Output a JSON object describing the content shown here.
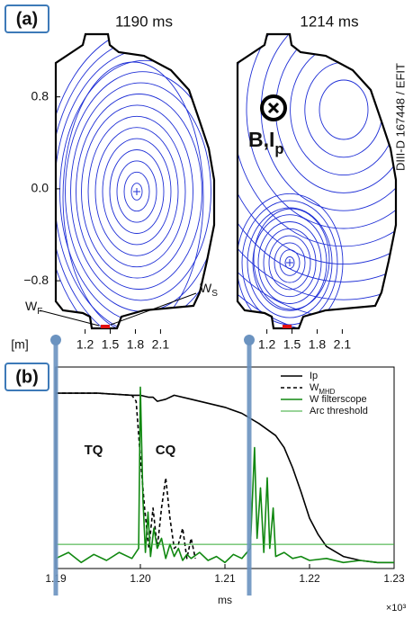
{
  "chart_data": [
    {
      "type": "contour",
      "panel": "(a)",
      "title": "1190 ms",
      "xlabel": "[m]",
      "xlim": [
        0.85,
        2.45
      ],
      "ylim": [
        -1.3,
        1.4
      ],
      "xticks": [
        1.2,
        1.5,
        1.8,
        2.1
      ],
      "yticks": [
        0.8,
        {
          "value": 0,
          "label": "0.0"
        },
        {
          "value": -0.8,
          "label": "−0.8"
        }
      ],
      "annotations": [
        "WF",
        "WS"
      ]
    },
    {
      "type": "contour",
      "title": "1214 ms",
      "source": "DIII-D 167448 / EFIT",
      "xlim": [
        0.85,
        2.45
      ],
      "ylim": [
        -1.3,
        1.4
      ],
      "xticks": [
        1.2,
        1.5,
        1.8,
        2.1
      ],
      "annotations": [
        "B,Ip"
      ]
    },
    {
      "type": "line",
      "panel": "(b)",
      "xlabel": "ms",
      "x_multiplier": "×10³",
      "xlim": [
        1.19,
        1.23
      ],
      "ylim": [
        0,
        1
      ],
      "xticks": [
        1.19,
        {
          "value": 1.2,
          "label": "1.20"
        },
        1.21,
        1.22,
        1.23
      ],
      "annotations": [
        "TQ",
        "CQ"
      ],
      "legend": "upper right",
      "series": [
        {
          "name": "Ip",
          "color": "#000000",
          "style": "solid",
          "x": [
            1.19,
            1.195,
            1.199,
            1.2,
            1.201,
            1.2015,
            1.202,
            1.203,
            1.204,
            1.206,
            1.208,
            1.21,
            1.212,
            1.214,
            1.216,
            1.217,
            1.218,
            1.219,
            1.22,
            1.221,
            1.222,
            1.224,
            1.226,
            1.228,
            1.23
          ],
          "values": [
            0.87,
            0.87,
            0.86,
            0.86,
            0.85,
            0.85,
            0.83,
            0.84,
            0.86,
            0.84,
            0.82,
            0.8,
            0.77,
            0.72,
            0.66,
            0.6,
            0.5,
            0.38,
            0.25,
            0.17,
            0.11,
            0.06,
            0.04,
            0.03,
            0.03
          ]
        },
        {
          "name": "WMHD",
          "color": "#000000",
          "style": "dashed",
          "x": [
            1.19,
            1.195,
            1.199,
            1.1995,
            1.2,
            1.2005,
            1.201,
            1.2015,
            1.202,
            1.2025,
            1.203,
            1.2035,
            1.204,
            1.2045,
            1.205,
            1.2055,
            1.206,
            1.2065
          ],
          "values": [
            0.87,
            0.87,
            0.86,
            0.83,
            0.55,
            0.3,
            0.1,
            0.3,
            0.1,
            0.3,
            0.45,
            0.25,
            0.1,
            0.12,
            0.2,
            0.05,
            0.15,
            0.05
          ]
        },
        {
          "name": "W filterscope",
          "color": "#118811",
          "style": "solid",
          "x": [
            1.19,
            1.1915,
            1.193,
            1.1945,
            1.196,
            1.1975,
            1.199,
            1.1998,
            1.2,
            1.2003,
            1.2006,
            1.2009,
            1.2012,
            1.2016,
            1.202,
            1.2025,
            1.203,
            1.2035,
            1.204,
            1.2045,
            1.205,
            1.2055,
            1.206,
            1.207,
            1.208,
            1.209,
            1.21,
            1.211,
            1.212,
            1.213,
            1.2135,
            1.2138,
            1.2142,
            1.2146,
            1.215,
            1.2153,
            1.2157,
            1.216,
            1.217,
            1.218,
            1.219,
            1.22,
            1.222,
            1.224,
            1.226,
            1.228,
            1.23
          ],
          "values": [
            0.05,
            0.08,
            0.03,
            0.07,
            0.04,
            0.08,
            0.05,
            0.1,
            0.9,
            0.35,
            0.08,
            0.28,
            0.06,
            0.2,
            0.1,
            0.15,
            0.05,
            0.12,
            0.06,
            0.1,
            0.04,
            0.07,
            0.05,
            0.08,
            0.04,
            0.06,
            0.03,
            0.07,
            0.05,
            0.1,
            0.6,
            0.15,
            0.4,
            0.08,
            0.45,
            0.1,
            0.3,
            0.06,
            0.08,
            0.05,
            0.06,
            0.04,
            0.05,
            0.03,
            0.04,
            0.03,
            0.03
          ]
        },
        {
          "name": "Arc threshold",
          "color": "#33aa33",
          "style": "thin",
          "x": [
            1.19,
            1.23
          ],
          "values": [
            0.12,
            0.12
          ]
        }
      ]
    }
  ]
}
